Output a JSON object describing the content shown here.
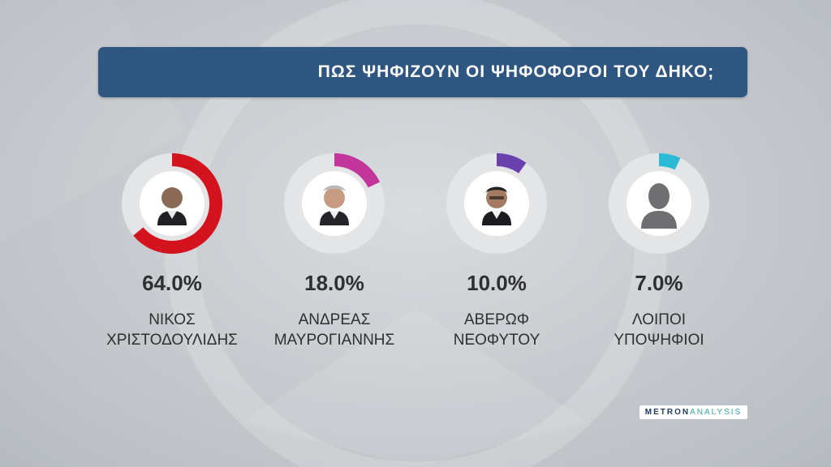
{
  "title": "ΠΩΣ ΨΗΦΙΖΟΥΝ ΟΙ ΨΗΦΟΦΟΡΟΙ ΤΟΥ ΔΗΚΟ;",
  "logo": {
    "part1": "METRON",
    "part2": "ANALYSIS"
  },
  "colors": {
    "title_bar": "#2f5581",
    "series": [
      "#d3141f",
      "#c2369b",
      "#6a3fae",
      "#2bb9d6"
    ]
  },
  "chart_data": {
    "type": "pie",
    "title": "ΠΩΣ ΨΗΦΙΖΟΥΝ ΟΙ ΨΗΦΟΦΟΡΟΙ ΤΟΥ ΔΗΚΟ;",
    "categories": [
      "ΝΙΚΟΣ ΧΡΙΣΤΟΔΟΥΛΙΔΗΣ",
      "ΑΝΔΡΕΑΣ ΜΑΥΡΟΓΙΑΝΝΗΣ",
      "ΑΒΕΡΩΦ ΝΕΟΦΥΤΟΥ",
      "ΛΟΙΠΟΙ ΥΠΟΨΗΦΙΟΙ"
    ],
    "values": [
      64.0,
      18.0,
      10.0,
      7.0
    ],
    "unit": "%"
  },
  "candidates": [
    {
      "pct_label": "64.0%",
      "value": 64.0,
      "name_line1": "ΝΙΚΟΣ",
      "name_line2": "ΧΡΙΣΤΟΔΟΥΛΙΔΗΣ",
      "photo": "man-photo",
      "color": "#d3141f"
    },
    {
      "pct_label": "18.0%",
      "value": 18.0,
      "name_line1": "ΑΝΔΡΕΑΣ",
      "name_line2": "ΜΑΥΡΟΓΙΑΝΝΗΣ",
      "photo": "man-photo",
      "color": "#c2369b"
    },
    {
      "pct_label": "10.0%",
      "value": 10.0,
      "name_line1": "ΑΒΕΡΩΦ",
      "name_line2": "ΝΕΟΦΥΤΟΥ",
      "photo": "man-photo",
      "color": "#6a3fae"
    },
    {
      "pct_label": "7.0%",
      "value": 7.0,
      "name_line1": "ΛΟΙΠΟΙ",
      "name_line2": "ΥΠΟΨΗΦΙΟΙ",
      "photo": "silhouette-icon",
      "color": "#2bb9d6"
    }
  ]
}
